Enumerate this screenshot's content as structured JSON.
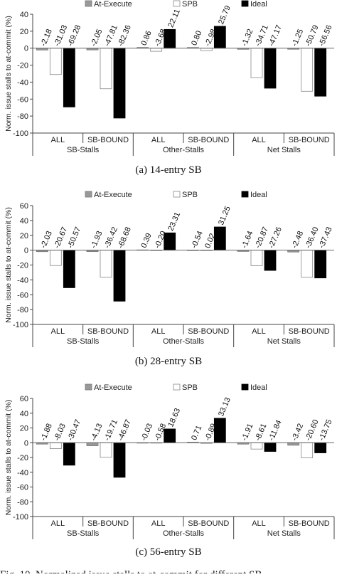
{
  "chart_data": [
    {
      "type": "bar",
      "caption": "(a) 14-entry SB",
      "ylabel": "Norm. issue stalls to at-commit (%)",
      "ylim": [
        -100,
        40
      ],
      "yticks": [
        -100,
        -80,
        -60,
        -40,
        -20,
        0,
        20,
        40
      ],
      "grid": false,
      "legend": "top-center",
      "categories": [
        "ALL",
        "SB-BOUND",
        "ALL",
        "SB-BOUND",
        "ALL",
        "SB-BOUND"
      ],
      "groups": [
        "SB-Stalls",
        "Other-Stalls",
        "Net Stalls"
      ],
      "series": [
        {
          "name": "At-Execute",
          "color": "#999999",
          "values": [
            -2.18,
            -2.05,
            0.86,
            0.8,
            -1.32,
            -1.25
          ]
        },
        {
          "name": "SPB",
          "color": "#ffffff",
          "values": [
            -31.03,
            -47.81,
            -3.68,
            -2.98,
            -34.71,
            -50.79
          ]
        },
        {
          "name": "Ideal",
          "color": "#000000",
          "values": [
            -69.28,
            -82.36,
            22.11,
            25.79,
            -47.17,
            -56.56
          ]
        }
      ]
    },
    {
      "type": "bar",
      "caption": "(b) 28-entry SB",
      "ylabel": "Norm. issue stalls to at-commit (%)",
      "ylim": [
        -100,
        60
      ],
      "yticks": [
        -100,
        -80,
        -60,
        -40,
        -20,
        0,
        20,
        40,
        60
      ],
      "grid": false,
      "legend": "top-center",
      "categories": [
        "ALL",
        "SB-BOUND",
        "ALL",
        "SB-BOUND",
        "ALL",
        "SB-BOUND"
      ],
      "groups": [
        "SB-Stalls",
        "Other-Stalls",
        "Net Stalls"
      ],
      "series": [
        {
          "name": "At-Execute",
          "color": "#999999",
          "values": [
            -2.03,
            -1.93,
            0.39,
            -0.54,
            -1.64,
            -2.48
          ]
        },
        {
          "name": "SPB",
          "color": "#ffffff",
          "values": [
            -20.67,
            -36.42,
            -0.2,
            0.02,
            -20.87,
            -36.4
          ]
        },
        {
          "name": "Ideal",
          "color": "#000000",
          "values": [
            -50.57,
            -68.68,
            23.31,
            31.25,
            -27.26,
            -37.43
          ]
        }
      ]
    },
    {
      "type": "bar",
      "caption": "(c) 56-entry SB",
      "ylabel": "Norm. issue stalls to at-commit (%)",
      "ylim": [
        -100,
        60
      ],
      "yticks": [
        -100,
        -80,
        -60,
        -40,
        -20,
        0,
        20,
        40,
        60
      ],
      "grid": false,
      "legend": "top-center",
      "categories": [
        "ALL",
        "SB-BOUND",
        "ALL",
        "SB-BOUND",
        "ALL",
        "SB-BOUND"
      ],
      "groups": [
        "SB-Stalls",
        "Other-Stalls",
        "Net Stalls"
      ],
      "series": [
        {
          "name": "At-Execute",
          "color": "#999999",
          "values": [
            -1.88,
            -4.13,
            -0.03,
            0.71,
            -1.91,
            -3.42
          ]
        },
        {
          "name": "SPB",
          "color": "#ffffff",
          "values": [
            -8.03,
            -19.71,
            -0.58,
            -0.89,
            -8.61,
            -20.6
          ]
        },
        {
          "name": "Ideal",
          "color": "#000000",
          "values": [
            -30.47,
            -46.87,
            18.63,
            33.13,
            -11.84,
            -13.75
          ]
        }
      ]
    }
  ],
  "figure_caption": "Fig. 10. Normalized issue stalls to at-commit for different SB"
}
